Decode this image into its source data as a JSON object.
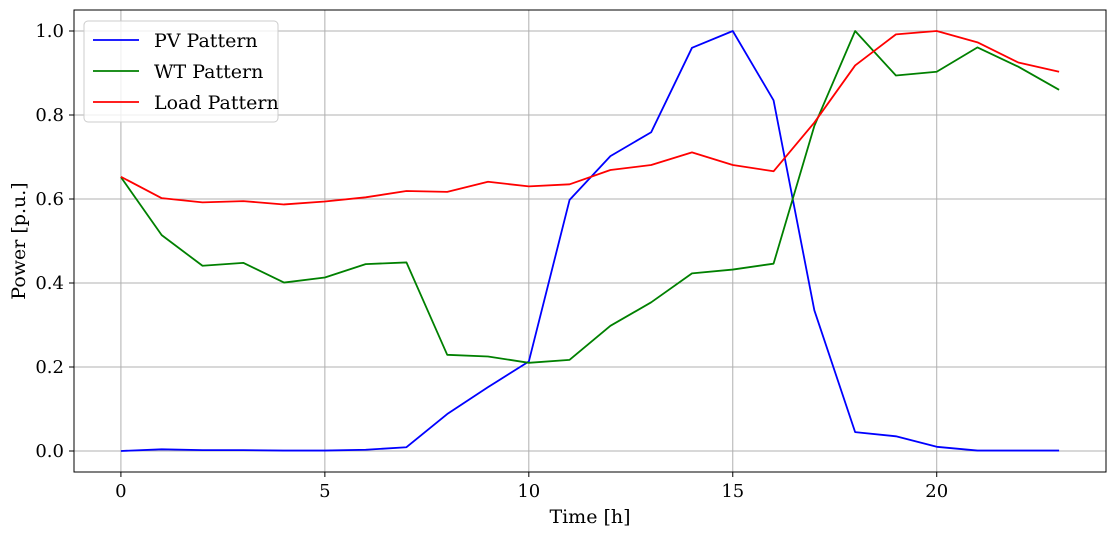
{
  "chart_data": {
    "type": "line",
    "xlabel": "Time [h]",
    "ylabel": "Power [p.u.]",
    "xlim": [
      -1.15,
      24.15
    ],
    "ylim": [
      -0.05,
      1.05
    ],
    "grid": true,
    "legend_position": "upper-left",
    "x_ticks": [
      0,
      5,
      10,
      15,
      20
    ],
    "x_tick_labels": [
      "0",
      "5",
      "10",
      "15",
      "20"
    ],
    "y_ticks": [
      0.0,
      0.2,
      0.4,
      0.6,
      0.8,
      1.0
    ],
    "y_tick_labels": [
      "0.0",
      "0.2",
      "0.4",
      "0.6",
      "0.8",
      "1.0"
    ],
    "x": [
      0,
      1,
      2,
      3,
      4,
      5,
      6,
      7,
      8,
      9,
      10,
      11,
      12,
      13,
      14,
      15,
      16,
      17,
      18,
      19,
      20,
      21,
      22,
      23
    ],
    "series": [
      {
        "name": "PV Pattern",
        "color": "#0000ff",
        "values": [
          0.0,
          0.004,
          0.002,
          0.002,
          0.001,
          0.001,
          0.003,
          0.009,
          0.088,
          0.152,
          0.213,
          0.598,
          0.702,
          0.759,
          0.96,
          1.0,
          0.835,
          0.335,
          0.045,
          0.035,
          0.01,
          0.001,
          0.001,
          0.001
        ]
      },
      {
        "name": "WT Pattern",
        "color": "#008000",
        "values": [
          0.652,
          0.514,
          0.441,
          0.448,
          0.401,
          0.413,
          0.445,
          0.449,
          0.229,
          0.225,
          0.21,
          0.217,
          0.298,
          0.354,
          0.423,
          0.432,
          0.446,
          0.774,
          1.0,
          0.894,
          0.903,
          0.961,
          0.915,
          0.86
        ]
      },
      {
        "name": "Load Pattern",
        "color": "#ff0000",
        "values": [
          0.653,
          0.602,
          0.592,
          0.595,
          0.587,
          0.594,
          0.604,
          0.619,
          0.617,
          0.641,
          0.63,
          0.635,
          0.669,
          0.681,
          0.711,
          0.681,
          0.666,
          0.782,
          0.918,
          0.992,
          1.0,
          0.973,
          0.925,
          0.903
        ]
      }
    ]
  }
}
